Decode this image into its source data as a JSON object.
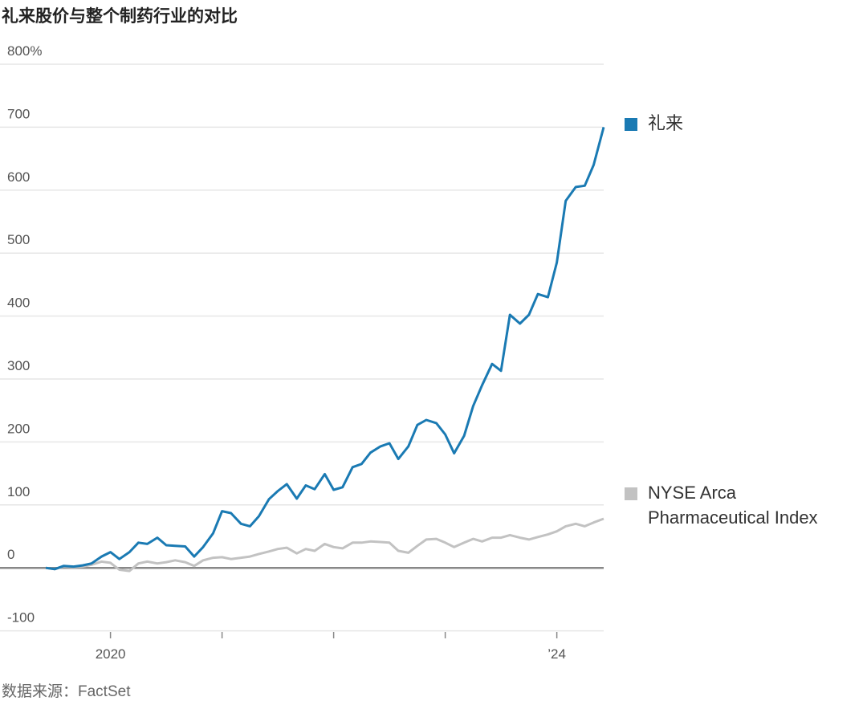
{
  "chart_data": {
    "type": "line",
    "title": "礼来股价与整个制药行业的对比",
    "source": "数据来源：FactSet",
    "x": [
      2019.42,
      2019.5,
      2019.58,
      2019.67,
      2019.75,
      2019.83,
      2019.92,
      2020,
      2020.08,
      2020.17,
      2020.25,
      2020.33,
      2020.42,
      2020.5,
      2020.58,
      2020.67,
      2020.75,
      2020.83,
      2020.92,
      2021,
      2021.08,
      2021.17,
      2021.25,
      2021.33,
      2021.42,
      2021.5,
      2021.58,
      2021.67,
      2021.75,
      2021.83,
      2021.92,
      2022,
      2022.08,
      2022.17,
      2022.25,
      2022.33,
      2022.42,
      2022.5,
      2022.58,
      2022.67,
      2022.75,
      2022.83,
      2022.92,
      2023,
      2023.08,
      2023.17,
      2023.25,
      2023.33,
      2023.42,
      2023.5,
      2023.58,
      2023.67,
      2023.75,
      2023.83,
      2023.92,
      2024,
      2024.08,
      2024.17,
      2024.25,
      2024.33,
      2024.42
    ],
    "series": [
      {
        "name": "礼来",
        "color": "#1a7ab3",
        "values": [
          0,
          -2,
          3,
          2,
          4,
          7,
          18,
          25,
          14,
          25,
          40,
          38,
          48,
          36,
          35,
          34,
          18,
          33,
          55,
          90,
          87,
          70,
          66,
          82,
          109,
          122,
          133,
          110,
          131,
          125,
          149,
          124,
          128,
          160,
          165,
          183,
          193,
          198,
          173,
          193,
          227,
          235,
          230,
          212,
          182,
          210,
          257,
          290,
          324,
          313,
          402,
          388,
          402,
          435,
          430,
          485,
          583,
          605,
          607,
          640,
          700
        ]
      },
      {
        "name": "NYSE Arca Pharmaceutical Index",
        "color": "#c2c2c2",
        "values": [
          0,
          -2,
          2,
          1,
          2,
          5,
          10,
          8,
          -3,
          -5,
          7,
          10,
          7,
          9,
          12,
          9,
          3,
          12,
          16,
          17,
          14,
          16,
          18,
          22,
          26,
          30,
          32,
          23,
          30,
          27,
          38,
          33,
          31,
          40,
          40,
          42,
          41,
          40,
          27,
          24,
          35,
          45,
          46,
          40,
          33,
          40,
          46,
          42,
          48,
          48,
          52,
          48,
          45,
          49,
          53,
          58,
          66,
          70,
          66,
          72,
          78
        ]
      }
    ],
    "xlim": [
      2019.01,
      2024.42
    ],
    "xticks": [
      2020,
      {
        "value": 2021,
        "label": null
      },
      {
        "value": 2022,
        "label": null
      },
      {
        "value": 2023,
        "label": null
      },
      {
        "value": 2024,
        "label": "’24"
      }
    ],
    "ylim": [
      -112,
      800
    ],
    "yticks": [
      {
        "value": 800,
        "label": "800%"
      },
      700,
      600,
      500,
      400,
      300,
      200,
      100,
      0,
      -100
    ],
    "grid": true
  }
}
